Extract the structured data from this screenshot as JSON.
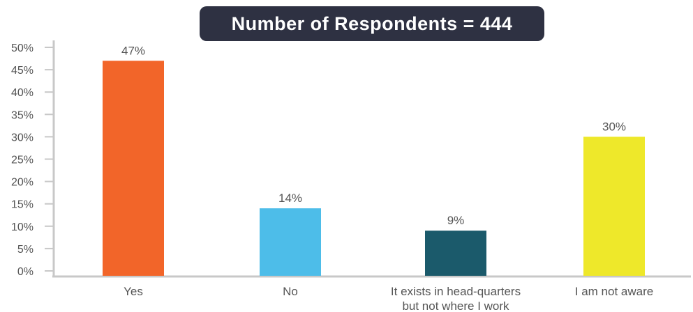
{
  "chart_data": {
    "type": "bar",
    "title": "Number of Respondents = 444",
    "categories": [
      [
        "Yes"
      ],
      [
        "No"
      ],
      [
        "It exists in head-quarters",
        "but not where I work"
      ],
      [
        "I am not aware"
      ]
    ],
    "values": [
      47,
      14,
      9,
      30
    ],
    "data_labels": [
      "47%",
      "14%",
      "9%",
      "30%"
    ],
    "colors": [
      "#f26529",
      "#4dbde9",
      "#1b5a6b",
      "#eee82a"
    ],
    "ylim": [
      0,
      50
    ],
    "yticks": [
      0,
      5,
      10,
      15,
      20,
      25,
      30,
      35,
      40,
      45,
      50
    ],
    "ytick_labels": [
      "0%",
      "5%",
      "10%",
      "15%",
      "20%",
      "25%",
      "30%",
      "35%",
      "40%",
      "45%",
      "50%"
    ],
    "xlabel": "",
    "ylabel": "",
    "grid": false,
    "legend": "none",
    "axis_color": "#c8c8c8"
  }
}
